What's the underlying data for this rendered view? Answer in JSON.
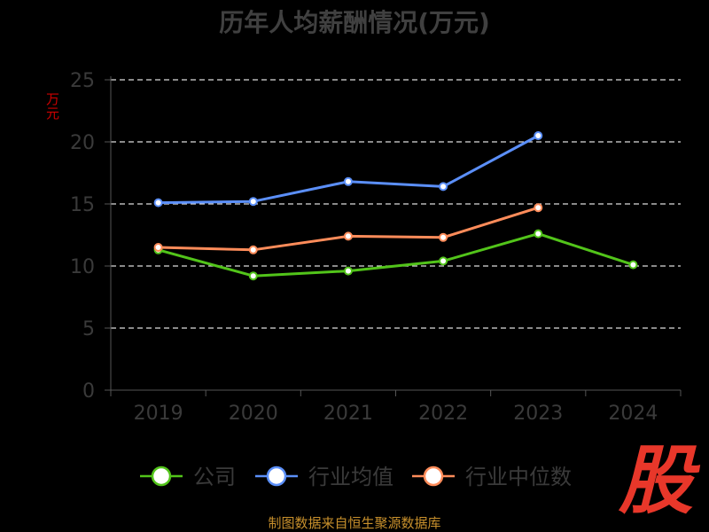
{
  "chart_data": {
    "type": "line",
    "title": "历年人均薪酬情况(万元)",
    "ylabel": "万元",
    "categories": [
      "2019",
      "2020",
      "2021",
      "2022",
      "2023",
      "2024"
    ],
    "ylim": [
      0,
      25
    ],
    "yticks": [
      0,
      5,
      10,
      15,
      20,
      25
    ],
    "grid": true,
    "legend_position": "bottom",
    "series": [
      {
        "name": "公司",
        "color": "#52c41a",
        "values": [
          11.3,
          9.2,
          9.6,
          10.4,
          12.6,
          10.1
        ]
      },
      {
        "name": "行业均值",
        "color": "#5b8ff9",
        "values": [
          15.1,
          15.2,
          16.8,
          16.4,
          20.5,
          null
        ]
      },
      {
        "name": "行业中位数",
        "color": "#ff8c5a",
        "values": [
          11.5,
          11.3,
          12.4,
          12.3,
          14.7,
          null
        ]
      }
    ]
  },
  "source": "制图数据来自恒生聚源数据库",
  "logo_text": "股"
}
